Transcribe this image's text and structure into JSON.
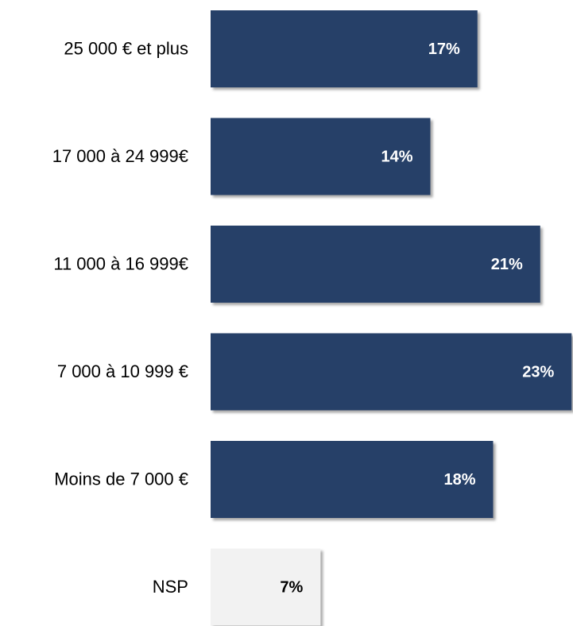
{
  "chart_data": {
    "type": "barh",
    "categories": [
      "25 000 € et plus",
      "17 000 à 24 999€",
      "11 000 à 16 999€",
      "7 000 à 10 999 €",
      "Moins de 7 000 €",
      "NSP"
    ],
    "values": [
      17,
      14,
      21,
      23,
      18,
      7
    ],
    "value_labels": [
      "17%",
      "14%",
      "21%",
      "23%",
      "18%",
      "7%"
    ],
    "colors": [
      "#253f68",
      "#253f68",
      "#253f68",
      "#253f68",
      "#253f68",
      "#f2f2f2"
    ],
    "label_colors": [
      "#ffffff",
      "#ffffff",
      "#ffffff",
      "#ffffff",
      "#ffffff",
      "#000000"
    ]
  }
}
